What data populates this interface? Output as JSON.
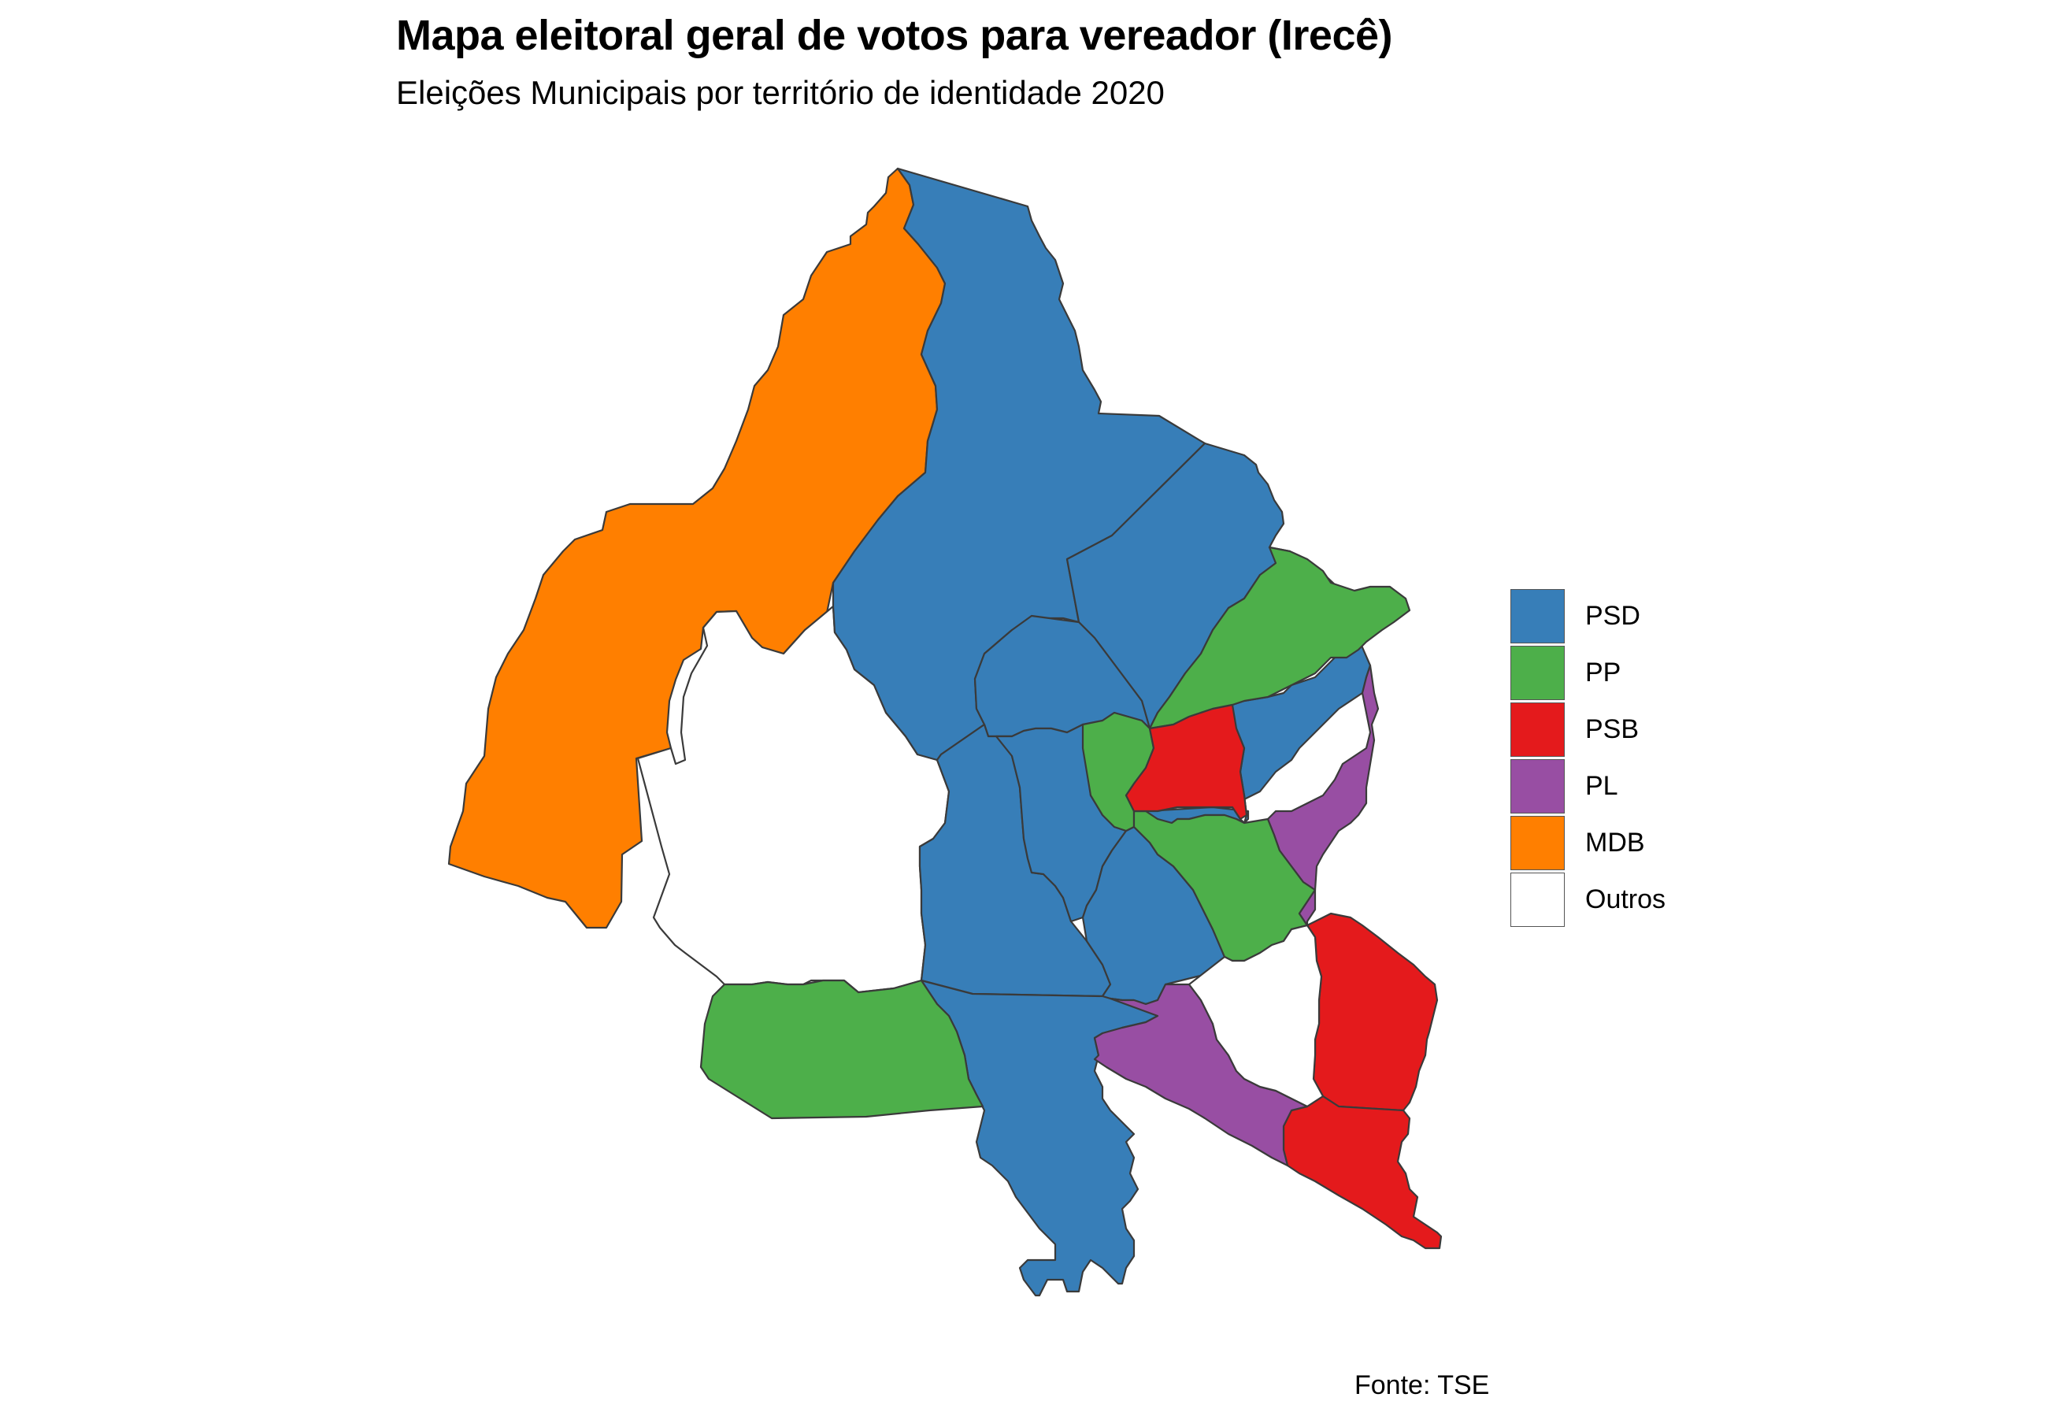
{
  "title": "Mapa eleitoral geral de votos para vereador (Irecê)",
  "subtitle": "Eleições Municipais por território de identidade 2020",
  "caption": "Fonte: TSE",
  "legend": {
    "title": "",
    "items": [
      {
        "party": "PSD",
        "color": "#377EB8"
      },
      {
        "party": "PP",
        "color": "#4DAF4A"
      },
      {
        "party": "PSB",
        "color": "#E41A1C"
      },
      {
        "party": "PL",
        "color": "#984EA3"
      },
      {
        "party": "MDB",
        "color": "#FF7F00"
      },
      {
        "party": "Outros",
        "color": "#FFFFFF"
      }
    ]
  },
  "municipalities": [
    {
      "region": "northwest",
      "party": "MDB"
    },
    {
      "region": "west-center",
      "party": "Outros"
    },
    {
      "region": "north-large",
      "party": "PSD"
    },
    {
      "region": "north-east",
      "party": "PSD"
    },
    {
      "region": "center-north",
      "party": "PSD"
    },
    {
      "region": "center-west",
      "party": "PSD"
    },
    {
      "region": "center",
      "party": "PSD"
    },
    {
      "region": "center-south",
      "party": "PSD"
    },
    {
      "region": "south-long",
      "party": "PSD"
    },
    {
      "region": "east-center",
      "party": "PSD"
    },
    {
      "region": "northeast",
      "party": "PP"
    },
    {
      "region": "center-small",
      "party": "PP"
    },
    {
      "region": "southeast-center",
      "party": "PP"
    },
    {
      "region": "southwest",
      "party": "PP"
    },
    {
      "region": "center-east",
      "party": "PSB"
    },
    {
      "region": "southeast-upper",
      "party": "PSB"
    },
    {
      "region": "southeast-lower",
      "party": "PSB"
    },
    {
      "region": "east",
      "party": "PL"
    },
    {
      "region": "south-diagonal",
      "party": "PL"
    },
    {
      "region": "southeast-gap",
      "party": "Outros"
    }
  ]
}
